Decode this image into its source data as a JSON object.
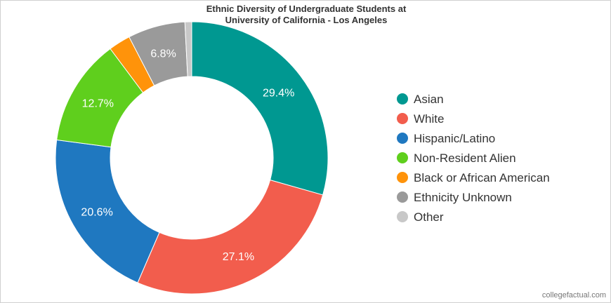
{
  "chart_data": {
    "type": "pie",
    "variant": "donut",
    "title_lines": [
      "Ethnic Diversity of Undergraduate Students at",
      "University of California - Los Angeles"
    ],
    "slices": [
      {
        "name": "Asian",
        "value": 29.4,
        "label": "29.4%",
        "color": "#009891"
      },
      {
        "name": "White",
        "value": 27.1,
        "label": "27.1%",
        "color": "#f25d4d"
      },
      {
        "name": "Hispanic/Latino",
        "value": 20.6,
        "label": "20.6%",
        "color": "#1f78c0"
      },
      {
        "name": "Non-Resident Alien",
        "value": 12.7,
        "label": "12.7%",
        "color": "#5fcf1d"
      },
      {
        "name": "Black or African American",
        "value": 2.6,
        "label": "",
        "color": "#ff930a"
      },
      {
        "name": "Ethnicity Unknown",
        "value": 6.8,
        "label": "6.8%",
        "color": "#9a9a9a"
      },
      {
        "name": "Other",
        "value": 0.8,
        "label": "",
        "color": "#c8c8c8"
      }
    ],
    "legend_position": "right"
  },
  "watermark": "collegefactual.com"
}
